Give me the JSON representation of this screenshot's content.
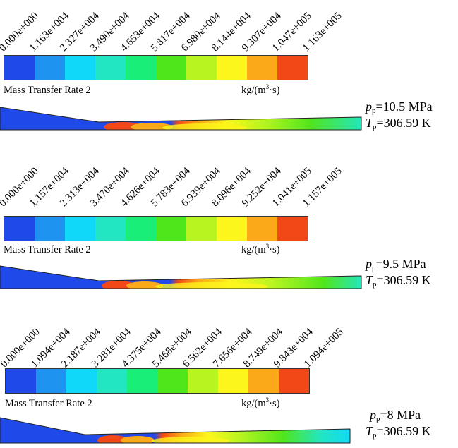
{
  "palette": [
    "#1f49e8",
    "#1f93f0",
    "#0fd8f8",
    "#22e6c2",
    "#18ee78",
    "#50e61c",
    "#b8f520",
    "#fdf61c",
    "#fba918",
    "#f24818"
  ],
  "panels": [
    {
      "ticks": [
        "0.000e+000",
        "1.163e+004",
        "2.327e+004",
        "3.490e+004",
        "4.653e+004",
        "5.817e+004",
        "6.980e+004",
        "8.144e+004",
        "9.307e+004",
        "1.047e+005",
        "1.163e+005"
      ],
      "quantity": "Mass Transfer Rate 2",
      "unit_main": "kg/(m",
      "unit_sup": "3",
      "unit_tail": "·s)",
      "pressure_symbol": "p",
      "pressure_sub": "p",
      "pressure_value": "=10.5 MPa",
      "temp_symbol": "T",
      "temp_sub": "p",
      "temp_value": "=306.59 K"
    },
    {
      "ticks": [
        "0.000e+000",
        "1.157e+004",
        "2.313e+004",
        "3.470e+004",
        "4.626e+004",
        "5.783e+004",
        "6.939e+004",
        "8.096e+004",
        "9.252e+004",
        "1.041e+005",
        "1.157e+005"
      ],
      "quantity": "Mass Transfer Rate 2",
      "unit_main": "kg/(m",
      "unit_sup": "3",
      "unit_tail": "·s)",
      "pressure_symbol": "p",
      "pressure_sub": "p",
      "pressure_value": "=9.5 MPa",
      "temp_symbol": "T",
      "temp_sub": "p",
      "temp_value": "=306.59 K"
    },
    {
      "ticks": [
        "0.000e+000",
        "1.094e+004",
        "2.187e+004",
        "3.281e+004",
        "4.375e+004",
        "5.468e+004",
        "6.562e+004",
        "7.656e+004",
        "8.749e+004",
        "9.843e+004",
        "1.094e+005"
      ],
      "quantity": "Mass Transfer Rate 2",
      "unit_main": "kg/(m",
      "unit_sup": "3",
      "unit_tail": "·s)",
      "pressure_symbol": "p",
      "pressure_sub": "p",
      "pressure_value": "=8 MPa",
      "temp_symbol": "T",
      "temp_sub": "p",
      "temp_value": "=306.59 K"
    }
  ]
}
